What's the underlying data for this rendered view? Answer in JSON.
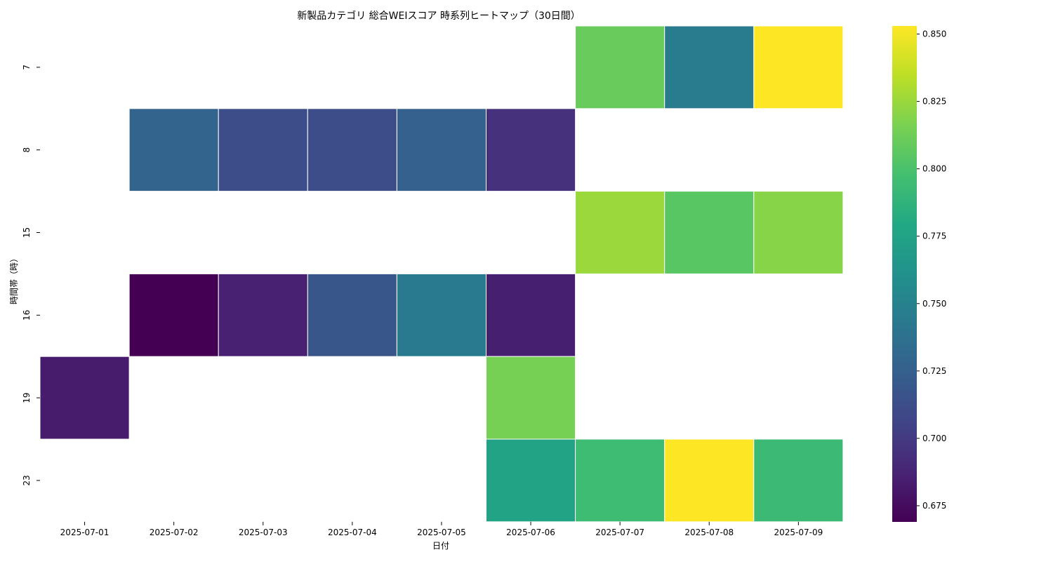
{
  "chart_data": {
    "type": "heatmap",
    "title": "新製品カテゴリ 総合WEIスコア 時系列ヒートマップ（30日間）",
    "xlabel": "日付",
    "ylabel": "時間帯（時）",
    "x_categories": [
      "2025-07-01",
      "2025-07-02",
      "2025-07-03",
      "2025-07-04",
      "2025-07-05",
      "2025-07-06",
      "2025-07-07",
      "2025-07-08",
      "2025-07-09"
    ],
    "y_categories": [
      "7",
      "8",
      "15",
      "16",
      "19",
      "23"
    ],
    "values": [
      [
        null,
        null,
        null,
        null,
        null,
        null,
        0.81,
        0.745,
        0.853
      ],
      [
        null,
        0.728,
        0.712,
        0.712,
        0.726,
        0.695,
        null,
        null,
        null
      ],
      [
        null,
        null,
        null,
        null,
        null,
        null,
        0.825,
        0.805,
        0.82
      ],
      [
        null,
        0.669,
        0.686,
        0.718,
        0.744,
        0.685,
        null,
        null,
        null
      ],
      [
        0.683,
        null,
        null,
        null,
        null,
        0.815,
        null,
        null,
        null
      ],
      [
        null,
        null,
        null,
        null,
        null,
        0.775,
        0.795,
        0.853,
        0.793
      ]
    ],
    "colorbar": {
      "colormap": "viridis",
      "min": 0.669,
      "max": 0.853,
      "ticks": [
        "0.675",
        "0.700",
        "0.725",
        "0.750",
        "0.775",
        "0.800",
        "0.825",
        "0.850"
      ]
    },
    "missing_cells": "blank",
    "grid": false
  }
}
